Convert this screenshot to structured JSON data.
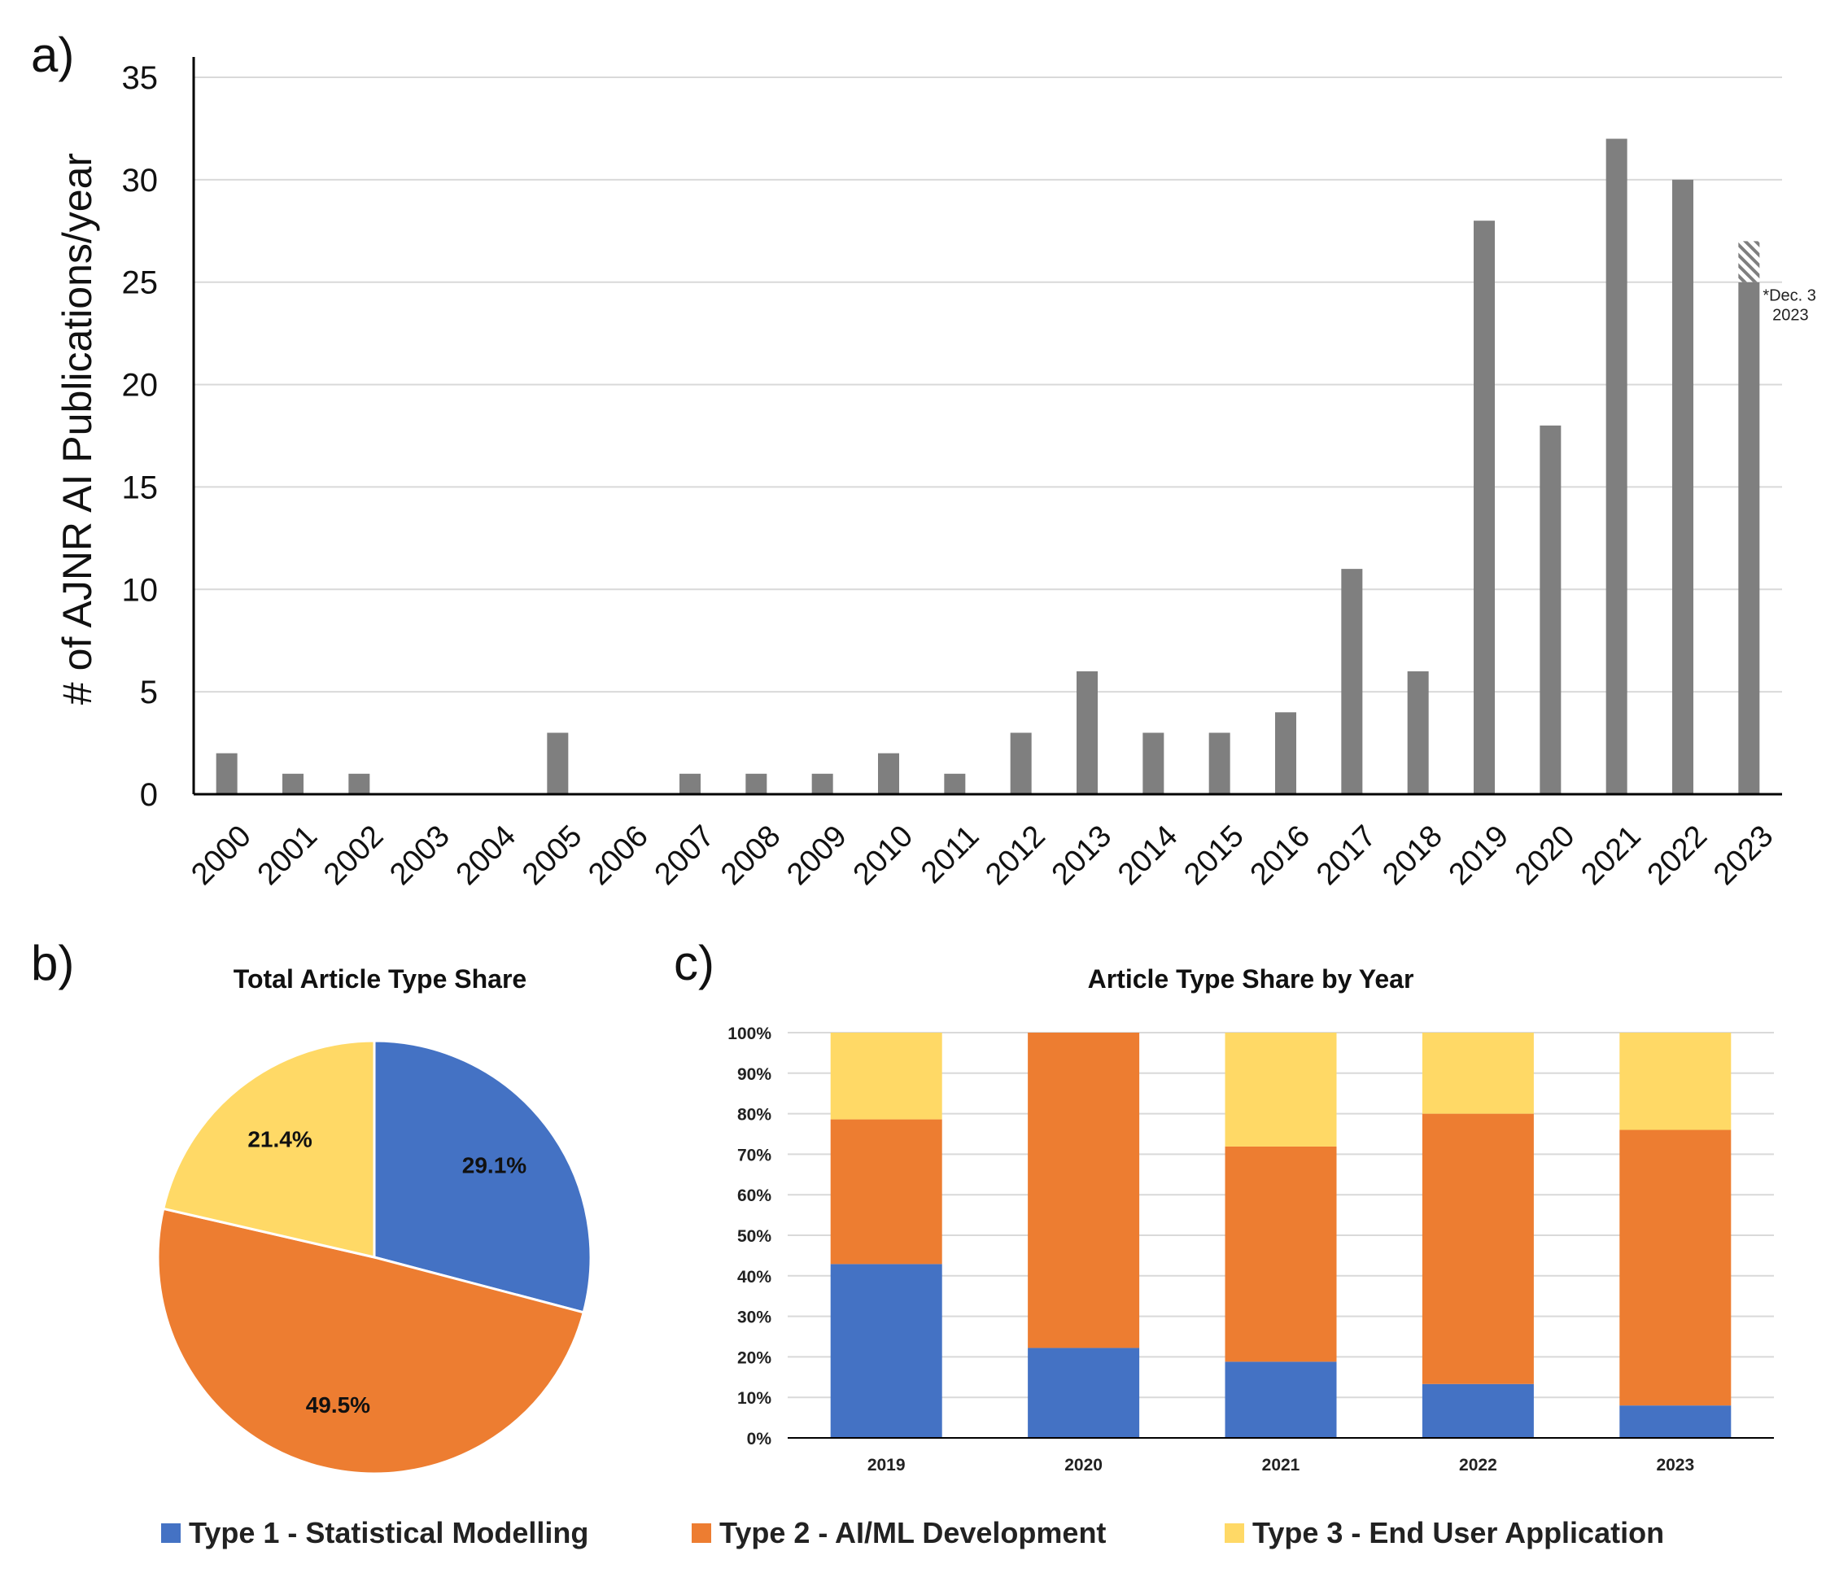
{
  "chart_data": [
    {
      "id": "a",
      "panel_label": "a)",
      "type": "bar",
      "title": "",
      "ylabel": "# of AJNR AI Publications/year",
      "xlabel": "",
      "ylim": [
        0,
        35
      ],
      "yticks": [
        0,
        5,
        10,
        15,
        20,
        25,
        30,
        35
      ],
      "grid": true,
      "categories": [
        "2000",
        "2001",
        "2002",
        "2003",
        "2004",
        "2005",
        "2006",
        "2007",
        "2008",
        "2009",
        "2010",
        "2011",
        "2012",
        "2013",
        "2014",
        "2015",
        "2016",
        "2017",
        "2018",
        "2019",
        "2020",
        "2021",
        "2022",
        "2023"
      ],
      "values": [
        2,
        1,
        1,
        0,
        0,
        3,
        0,
        1,
        1,
        1,
        2,
        1,
        3,
        6,
        3,
        3,
        4,
        11,
        6,
        28,
        18,
        32,
        30,
        25
      ],
      "bar_color": "#7f7f7f",
      "projection": {
        "category": "2023",
        "value": 27,
        "pattern": "hatched"
      },
      "annotation": {
        "category": "2023",
        "lines": [
          "*Dec. 3",
          "2023"
        ]
      }
    },
    {
      "id": "b",
      "panel_label": "b)",
      "type": "pie",
      "title": "Total Article Type Share",
      "slices": [
        {
          "name": "Type 1 - Statistical Modelling",
          "value": 29.1,
          "label": "29.1%",
          "color": "#4472c4"
        },
        {
          "name": "Type 2 - AI/ML Development",
          "value": 49.5,
          "label": "49.5%",
          "color": "#ed7d31"
        },
        {
          "name": "Type 3 - End User Application",
          "value": 21.4,
          "label": "21.4%",
          "color": "#ffd966"
        }
      ]
    },
    {
      "id": "c",
      "panel_label": "c)",
      "type": "bar",
      "stacked": true,
      "title": "Article Type Share by Year",
      "ylim": [
        0,
        100
      ],
      "yticks": [
        "0%",
        "10%",
        "20%",
        "30%",
        "40%",
        "50%",
        "60%",
        "70%",
        "80%",
        "90%",
        "100%"
      ],
      "grid": true,
      "categories": [
        "2019",
        "2020",
        "2021",
        "2022",
        "2023"
      ],
      "series": [
        {
          "name": "Type 1 - Statistical Modelling",
          "color": "#4472c4",
          "values": [
            42.9,
            22.2,
            18.8,
            13.3,
            8.0
          ]
        },
        {
          "name": "Type 2 - AI/ML Development",
          "color": "#ed7d31",
          "values": [
            35.7,
            77.8,
            53.1,
            66.7,
            68.0
          ]
        },
        {
          "name": "Type 3 - End User Application",
          "color": "#ffd966",
          "values": [
            21.4,
            0,
            28.1,
            20.0,
            24.0
          ]
        }
      ]
    }
  ],
  "legend": {
    "placement": "bottom",
    "items": [
      {
        "label": "Type 1 - Statistical Modelling",
        "color": "#4472c4"
      },
      {
        "label": "Type 2 - AI/ML Development",
        "color": "#ed7d31"
      },
      {
        "label": "Type 3 - End User Application",
        "color": "#ffd966"
      }
    ]
  }
}
